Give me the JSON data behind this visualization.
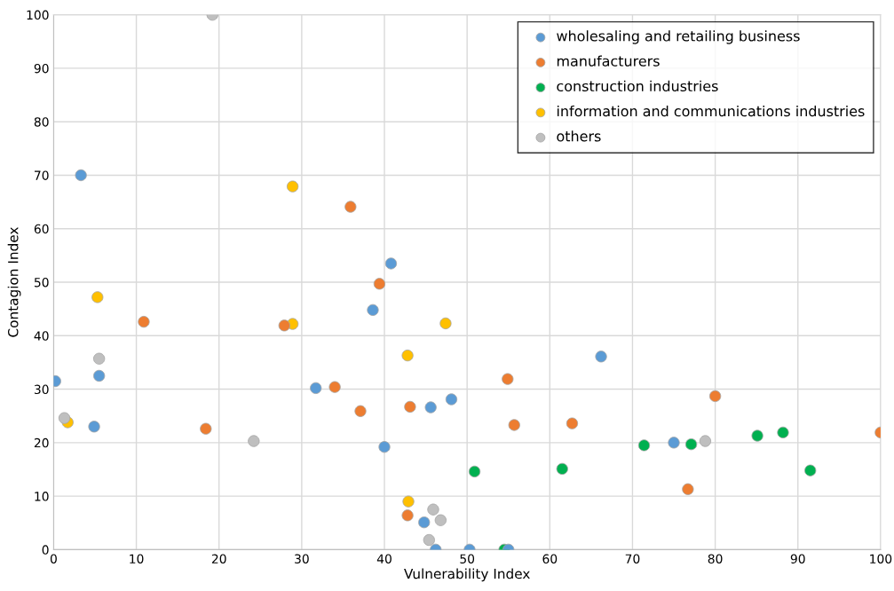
{
  "chart_data": {
    "type": "scatter",
    "xlabel": "Vulnerability Index",
    "ylabel": "Contagion Index",
    "xlim": [
      0,
      100
    ],
    "ylim": [
      0,
      100
    ],
    "xticks": [
      0,
      10,
      20,
      30,
      40,
      50,
      60,
      70,
      80,
      90,
      100
    ],
    "yticks": [
      0,
      10,
      20,
      30,
      40,
      50,
      60,
      70,
      80,
      90,
      100
    ],
    "grid": true,
    "legend": "top right",
    "marker": "circle",
    "series": [
      {
        "name": "wholesaling and retailing business",
        "color": "#5b9bd5",
        "x": [
          0.2,
          3.3,
          5.5,
          4.9,
          31.7,
          38.6,
          40.8,
          40.0,
          45.6,
          48.1,
          66.2,
          75,
          44.8,
          46.2,
          50.3,
          55
        ],
        "values": [
          31.5,
          70,
          32.5,
          23,
          30.2,
          44.8,
          53.5,
          19.2,
          26.6,
          28.1,
          36.1,
          20,
          5.1,
          0,
          0,
          0
        ]
      },
      {
        "name": "manufacturers",
        "color": "#ed7d31",
        "x": [
          10.9,
          18.4,
          27.9,
          34,
          37.1,
          35.9,
          39.4,
          43.1,
          42.8,
          54.9,
          55.7,
          62.7,
          80,
          76.7,
          100
        ],
        "values": [
          42.6,
          22.6,
          41.9,
          30.4,
          25.9,
          64.1,
          49.7,
          26.7,
          6.4,
          31.9,
          23.3,
          23.6,
          28.7,
          11.3,
          21.9
        ]
      },
      {
        "name": "construction industries",
        "color": "#00b050",
        "x": [
          50.9,
          54.5,
          61.5,
          71.4,
          77.1,
          85.1,
          88.2,
          91.5
        ],
        "values": [
          14.6,
          0,
          15.1,
          19.5,
          19.7,
          21.3,
          21.9,
          14.8
        ]
      },
      {
        "name": "information and communications industries",
        "color": "#ffc000",
        "x": [
          5.3,
          1.7,
          28.9,
          28.9,
          42.8,
          47.4,
          42.9
        ],
        "values": [
          47.2,
          23.8,
          67.9,
          42.2,
          36.3,
          42.3,
          9.0
        ]
      },
      {
        "name": "others",
        "color": "#bfbfbf",
        "x": [
          19.2,
          5.5,
          1.3,
          24.2,
          45.9,
          46.8,
          45.4,
          78.8
        ],
        "values": [
          100,
          35.7,
          24.6,
          20.3,
          7.5,
          5.5,
          1.8,
          20.3
        ]
      }
    ]
  }
}
